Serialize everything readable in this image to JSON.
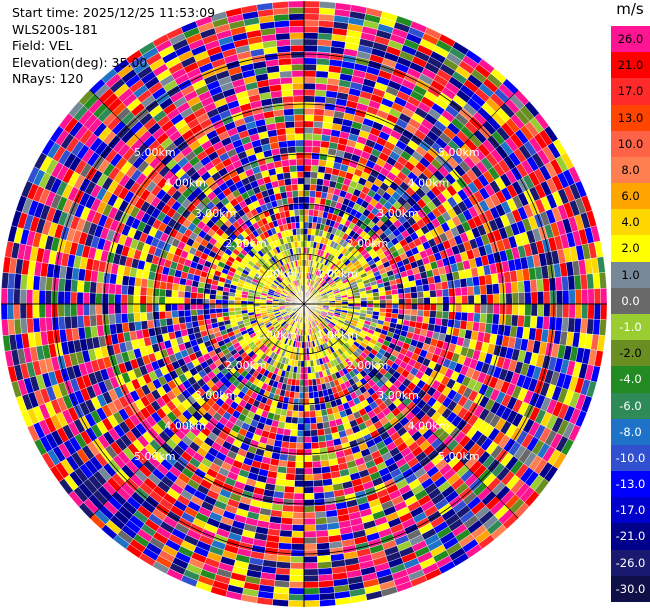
{
  "info": {
    "start_time": "Start time: 2025/12/25 11:53:09",
    "station": "WLS200s-181",
    "field": "Field: VEL",
    "elevation": "Elevation(deg): 35.00",
    "nrays": "NRays: 120"
  },
  "colorbar": {
    "unit": "m/s",
    "levels": [
      {
        "label": "26.0",
        "color": "#ff1493"
      },
      {
        "label": "21.0",
        "color": "#ff0000"
      },
      {
        "label": "17.0",
        "color": "#ff2a2a"
      },
      {
        "label": "13.0",
        "color": "#ff4500"
      },
      {
        "label": "10.0",
        "color": "#ff6347"
      },
      {
        "label": "8.0",
        "color": "#ff7f50"
      },
      {
        "label": "6.0",
        "color": "#ffa500"
      },
      {
        "label": "4.0",
        "color": "#ffd700"
      },
      {
        "label": "2.0",
        "color": "#ffff00"
      },
      {
        "label": "1.0",
        "color": "#778899"
      },
      {
        "label": "0.0",
        "color": "#696969"
      },
      {
        "label": "-1.0",
        "color": "#9acd32"
      },
      {
        "label": "-2.0",
        "color": "#6b8e23"
      },
      {
        "label": "-4.0",
        "color": "#228b22"
      },
      {
        "label": "-6.0",
        "color": "#2e8b57"
      },
      {
        "label": "-8.0",
        "color": "#1e73c8"
      },
      {
        "label": "-10.0",
        "color": "#3050d0"
      },
      {
        "label": "-13.0",
        "color": "#0000ff"
      },
      {
        "label": "-17.0",
        "color": "#0000cd"
      },
      {
        "label": "-21.0",
        "color": "#00008b"
      },
      {
        "label": "-26.0",
        "color": "#191970"
      },
      {
        "label": "-30.0",
        "color": "#ffffff"
      }
    ]
  },
  "chart_data": {
    "type": "heatmap",
    "projection": "polar",
    "field": "VEL",
    "unit": "m/s",
    "nrays": 120,
    "elevation_deg": 35.0,
    "range_labels": [
      "1.00km",
      "2.00km",
      "3.00km",
      "4.00km",
      "5.00km"
    ],
    "value_range": [
      -30.0,
      26.0
    ]
  }
}
